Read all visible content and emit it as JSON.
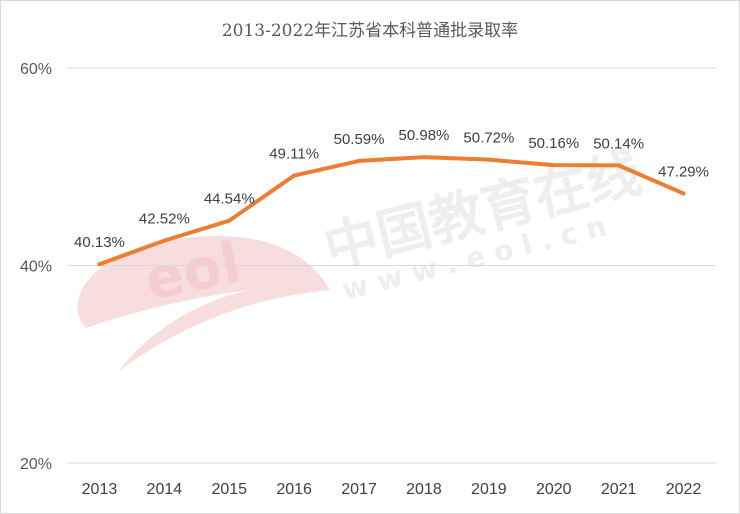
{
  "chart_data": {
    "type": "line",
    "title": "2013-2022年江苏省本科普通批录取率",
    "xlabel": "",
    "ylabel": "",
    "categories": [
      "2013",
      "2014",
      "2015",
      "2016",
      "2017",
      "2018",
      "2019",
      "2020",
      "2021",
      "2022"
    ],
    "series": [
      {
        "values": [
          40.13,
          42.52,
          44.54,
          49.11,
          50.59,
          50.98,
          50.72,
          50.16,
          50.14,
          47.29
        ],
        "labels": [
          "40.13%",
          "42.52%",
          "44.54%",
          "49.11%",
          "50.59%",
          "50.98%",
          "50.72%",
          "50.16%",
          "50.14%",
          "47.29%"
        ],
        "color": "#ed7d31"
      }
    ],
    "ylim": [
      20,
      60
    ],
    "yticks": [
      {
        "value": 60,
        "label": "60%"
      },
      {
        "value": 40,
        "label": "40%"
      },
      {
        "value": 20,
        "label": "20%"
      }
    ],
    "grid": true,
    "legend": "none"
  },
  "watermark": {
    "text": "中国教育在线",
    "url": "w w w . e o l . c n",
    "logo": "eol"
  }
}
